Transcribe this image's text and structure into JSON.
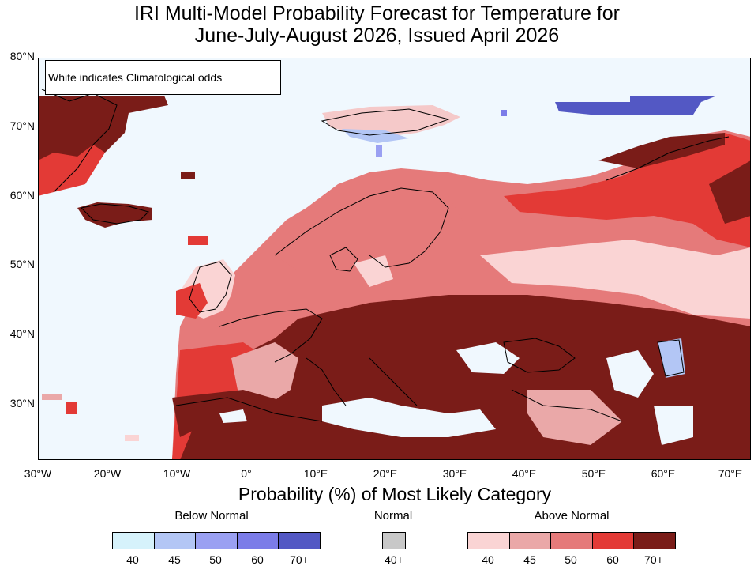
{
  "title_line1": "IRI Multi-Model Probability Forecast for Temperature for",
  "title_line2": "June-July-August 2026, Issued April 2026",
  "note": "White indicates Climatological odds",
  "x_axis_title": "Probability (%) of Most Likely Category",
  "lon_labels": [
    "30°W",
    "20°W",
    "10°W",
    "0°",
    "10°E",
    "20°E",
    "30°E",
    "40°E",
    "50°E",
    "60°E",
    "70°E"
  ],
  "lat_labels": [
    "80°N",
    "70°N",
    "60°N",
    "50°N",
    "40°N",
    "30°N"
  ],
  "legend": {
    "below": {
      "label": "Below Normal",
      "values": [
        "40",
        "45",
        "50",
        "60",
        "70+"
      ],
      "colors": [
        "#d6f2fb",
        "#b3c6f5",
        "#9aa0f2",
        "#7b7ce8",
        "#5358c4"
      ]
    },
    "normal": {
      "label": "Normal",
      "values": [
        "40+"
      ],
      "colors": [
        "#c8c8c8"
      ]
    },
    "above": {
      "label": "Above Normal",
      "values": [
        "40",
        "45",
        "50",
        "60",
        "70+"
      ],
      "colors": [
        "#fad4d4",
        "#eaa8a8",
        "#e57a7a",
        "#e33a36",
        "#7a1c18"
      ]
    }
  },
  "colors": {
    "ocean": "#f0f8fe",
    "border": "#000000"
  }
}
